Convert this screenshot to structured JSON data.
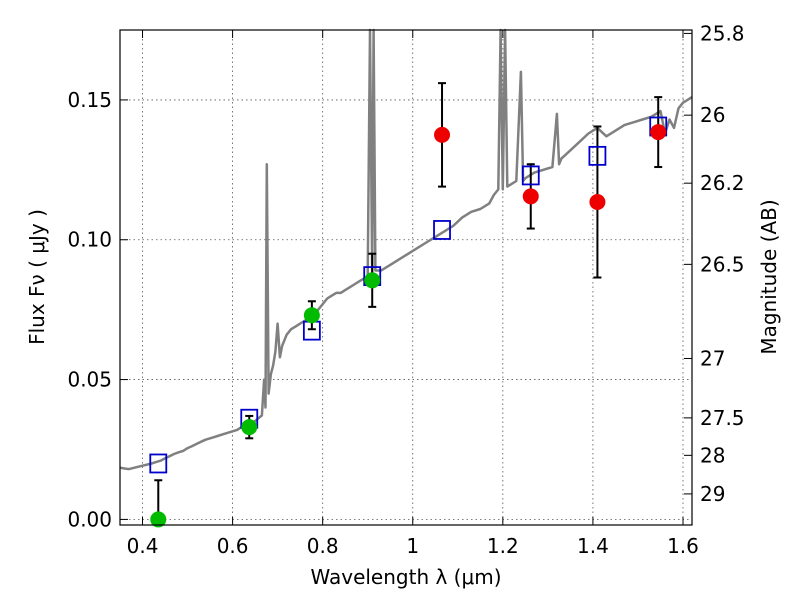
{
  "chart_data": {
    "type": "scatter",
    "xlabel": "Wavelength  λ (μm)",
    "ylabel": "Flux  Fν ( μJy )",
    "y2label": "Magnitude (AB)",
    "xlim": [
      0.35,
      1.62
    ],
    "ylim": [
      -0.002,
      0.175
    ],
    "grid": true,
    "x_ticks": [
      {
        "value": 0.4,
        "label": "0.4"
      },
      {
        "value": 0.6,
        "label": "0.6"
      },
      {
        "value": 0.8,
        "label": "0.8"
      },
      {
        "value": 1.0,
        "label": "1"
      },
      {
        "value": 1.2,
        "label": "1.2"
      },
      {
        "value": 1.4,
        "label": "1.4"
      },
      {
        "value": 1.6,
        "label": "1.6"
      }
    ],
    "y_ticks": [
      {
        "value": 0.0,
        "label": "0.00"
      },
      {
        "value": 0.05,
        "label": "0.05"
      },
      {
        "value": 0.1,
        "label": "0.10"
      },
      {
        "value": 0.15,
        "label": "0.15"
      }
    ],
    "y2_ticks": [
      {
        "mag": 25.8,
        "label": "25.8"
      },
      {
        "mag": 26,
        "label": "26"
      },
      {
        "mag": 26.2,
        "label": "26.2"
      },
      {
        "mag": 26.5,
        "label": "26.5"
      },
      {
        "mag": 27,
        "label": "27"
      },
      {
        "mag": 27.5,
        "label": "27.5"
      },
      {
        "mag": 28,
        "label": "28"
      },
      {
        "mag": 29,
        "label": "29"
      }
    ],
    "series": [
      {
        "kind": "spectrum",
        "color": "#808080",
        "points": [
          [
            0.35,
            0.0185
          ],
          [
            0.36,
            0.0182
          ],
          [
            0.37,
            0.018
          ],
          [
            0.38,
            0.0184
          ],
          [
            0.39,
            0.0188
          ],
          [
            0.4,
            0.0192
          ],
          [
            0.41,
            0.0196
          ],
          [
            0.42,
            0.02
          ],
          [
            0.43,
            0.0205
          ],
          [
            0.44,
            0.021
          ],
          [
            0.45,
            0.0218
          ],
          [
            0.46,
            0.0226
          ],
          [
            0.47,
            0.0234
          ],
          [
            0.48,
            0.024
          ],
          [
            0.49,
            0.0245
          ],
          [
            0.5,
            0.0255
          ],
          [
            0.51,
            0.0262
          ],
          [
            0.52,
            0.027
          ],
          [
            0.53,
            0.0278
          ],
          [
            0.54,
            0.0285
          ],
          [
            0.55,
            0.029
          ],
          [
            0.56,
            0.0295
          ],
          [
            0.57,
            0.03
          ],
          [
            0.58,
            0.0305
          ],
          [
            0.59,
            0.031
          ],
          [
            0.6,
            0.0315
          ],
          [
            0.61,
            0.032
          ],
          [
            0.62,
            0.033
          ],
          [
            0.63,
            0.0335
          ],
          [
            0.64,
            0.034
          ],
          [
            0.65,
            0.0352
          ],
          [
            0.66,
            0.0365
          ],
          [
            0.665,
            0.0372
          ],
          [
            0.67,
            0.05
          ],
          [
            0.673,
            0.04
          ],
          [
            0.676,
            0.127
          ],
          [
            0.68,
            0.045
          ],
          [
            0.685,
            0.052
          ],
          [
            0.69,
            0.055
          ],
          [
            0.695,
            0.06
          ],
          [
            0.7,
            0.07
          ],
          [
            0.705,
            0.058
          ],
          [
            0.71,
            0.062
          ],
          [
            0.72,
            0.066
          ],
          [
            0.73,
            0.068
          ],
          [
            0.74,
            0.069
          ],
          [
            0.75,
            0.07
          ],
          [
            0.76,
            0.071
          ],
          [
            0.77,
            0.072
          ],
          [
            0.78,
            0.073
          ],
          [
            0.79,
            0.075
          ],
          [
            0.8,
            0.077
          ],
          [
            0.81,
            0.079
          ],
          [
            0.82,
            0.08
          ],
          [
            0.83,
            0.081
          ],
          [
            0.84,
            0.081
          ],
          [
            0.85,
            0.082
          ],
          [
            0.86,
            0.083
          ],
          [
            0.87,
            0.084
          ],
          [
            0.88,
            0.085
          ],
          [
            0.89,
            0.086
          ],
          [
            0.9,
            0.087
          ],
          [
            0.905,
            0.175
          ],
          [
            0.91,
            0.088
          ],
          [
            0.913,
            0.175
          ],
          [
            0.917,
            0.089
          ],
          [
            0.93,
            0.089
          ],
          [
            0.95,
            0.091
          ],
          [
            0.97,
            0.093
          ],
          [
            0.99,
            0.095
          ],
          [
            1.01,
            0.097
          ],
          [
            1.03,
            0.099
          ],
          [
            1.05,
            0.101
          ],
          [
            1.07,
            0.103
          ],
          [
            1.09,
            0.105
          ],
          [
            1.11,
            0.108
          ],
          [
            1.13,
            0.11
          ],
          [
            1.15,
            0.111
          ],
          [
            1.17,
            0.113
          ],
          [
            1.18,
            0.116
          ],
          [
            1.19,
            0.118
          ],
          [
            1.195,
            0.175
          ],
          [
            1.2,
            0.118
          ],
          [
            1.205,
            0.175
          ],
          [
            1.21,
            0.119
          ],
          [
            1.22,
            0.12
          ],
          [
            1.23,
            0.121
          ],
          [
            1.24,
            0.16
          ],
          [
            1.245,
            0.121
          ],
          [
            1.25,
            0.122
          ],
          [
            1.27,
            0.124
          ],
          [
            1.29,
            0.125
          ],
          [
            1.31,
            0.126
          ],
          [
            1.32,
            0.145
          ],
          [
            1.325,
            0.127
          ],
          [
            1.33,
            0.129
          ],
          [
            1.35,
            0.132
          ],
          [
            1.37,
            0.135
          ],
          [
            1.39,
            0.138
          ],
          [
            1.41,
            0.14
          ],
          [
            1.43,
            0.137
          ],
          [
            1.45,
            0.139
          ],
          [
            1.47,
            0.141
          ],
          [
            1.49,
            0.142
          ],
          [
            1.51,
            0.143
          ],
          [
            1.53,
            0.144
          ],
          [
            1.55,
            0.146
          ],
          [
            1.56,
            0.138
          ],
          [
            1.57,
            0.143
          ],
          [
            1.58,
            0.14
          ],
          [
            1.59,
            0.147
          ],
          [
            1.6,
            0.149
          ],
          [
            1.61,
            0.15
          ],
          [
            1.62,
            0.151
          ]
        ]
      },
      {
        "kind": "model-squares",
        "color": "#0000cc",
        "points": [
          [
            0.435,
            0.02
          ],
          [
            0.637,
            0.036
          ],
          [
            0.776,
            0.0675
          ],
          [
            0.91,
            0.087
          ],
          [
            1.065,
            0.1035
          ],
          [
            1.262,
            0.123
          ],
          [
            1.41,
            0.13
          ],
          [
            1.545,
            0.1405
          ]
        ]
      },
      {
        "kind": "detections-green",
        "color": "#00bb00",
        "points": [
          {
            "x": 0.435,
            "y": 0.0,
            "err_up": 0.014,
            "err_down": 0.0
          },
          {
            "x": 0.637,
            "y": 0.033,
            "err_up": 0.004,
            "err_down": 0.004
          },
          {
            "x": 0.776,
            "y": 0.073,
            "err_up": 0.005,
            "err_down": 0.005
          },
          {
            "x": 0.91,
            "y": 0.0855,
            "err_up": 0.0095,
            "err_down": 0.0095
          }
        ]
      },
      {
        "kind": "detections-red",
        "color": "#ee0000",
        "points": [
          {
            "x": 1.065,
            "y": 0.1375,
            "err_up": 0.0185,
            "err_down": 0.0185
          },
          {
            "x": 1.262,
            "y": 0.1155,
            "err_up": 0.0115,
            "err_down": 0.0115
          },
          {
            "x": 1.41,
            "y": 0.1135,
            "err_up": 0.027,
            "err_down": 0.027
          },
          {
            "x": 1.545,
            "y": 0.1385,
            "err_up": 0.0125,
            "err_down": 0.0125
          }
        ]
      }
    ]
  }
}
